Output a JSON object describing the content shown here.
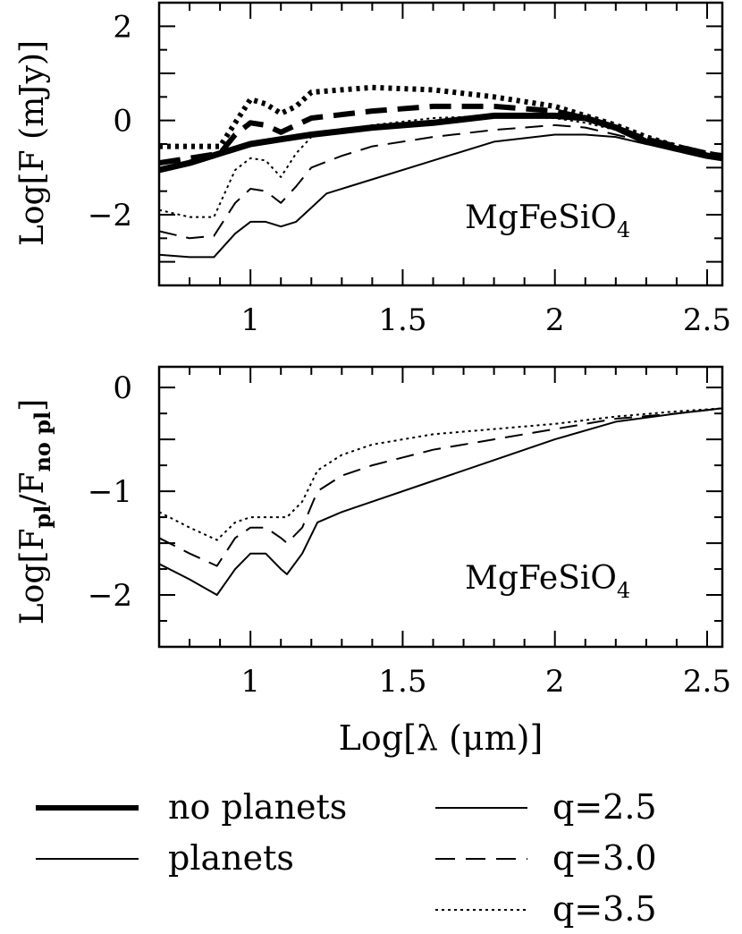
{
  "chart_data": [
    {
      "type": "line",
      "panel": "top",
      "xlabel": "",
      "ylabel": "Log[F (mJy)]",
      "xlim": [
        0.7,
        2.55
      ],
      "ylim": [
        -3.5,
        2.5
      ],
      "xticks": [
        1,
        1.5,
        2,
        2.5
      ],
      "xtick_labels": [
        "1",
        "1.5",
        "2",
        "2.5"
      ],
      "yticks": [
        2,
        0,
        -2
      ],
      "ytick_labels": [
        "2",
        "0",
        "−2"
      ],
      "annotation": {
        "text": "MgFeSiO",
        "subscript": "4"
      },
      "series": [
        {
          "name": "no planets, q=2.5",
          "style": "thick-solid",
          "x": [
            0.7,
            0.8,
            0.9,
            1.0,
            1.1,
            1.2,
            1.4,
            1.6,
            1.8,
            2.0,
            2.1,
            2.2,
            2.3,
            2.4,
            2.5,
            2.55
          ],
          "y": [
            -1.05,
            -0.9,
            -0.7,
            -0.5,
            -0.4,
            -0.3,
            -0.15,
            -0.05,
            0.1,
            0.1,
            0.05,
            -0.15,
            -0.45,
            -0.6,
            -0.75,
            -0.8
          ]
        },
        {
          "name": "no planets, q=3.0",
          "style": "thick-dashed",
          "x": [
            0.7,
            0.8,
            0.9,
            0.95,
            1.0,
            1.05,
            1.1,
            1.15,
            1.2,
            1.4,
            1.6,
            1.8,
            2.0,
            2.1,
            2.2,
            2.3,
            2.4,
            2.5,
            2.55
          ],
          "y": [
            -0.9,
            -0.8,
            -0.7,
            -0.3,
            -0.05,
            -0.1,
            -0.25,
            -0.1,
            0.05,
            0.2,
            0.3,
            0.3,
            0.2,
            0.05,
            -0.15,
            -0.4,
            -0.55,
            -0.7,
            -0.75
          ]
        },
        {
          "name": "no planets, q=3.5",
          "style": "thick-dotted",
          "x": [
            0.7,
            0.8,
            0.9,
            0.95,
            1.0,
            1.05,
            1.1,
            1.15,
            1.2,
            1.3,
            1.4,
            1.6,
            1.8,
            2.0,
            2.1,
            2.2,
            2.3,
            2.4,
            2.5,
            2.55
          ],
          "y": [
            -0.55,
            -0.55,
            -0.55,
            -0.05,
            0.45,
            0.35,
            0.15,
            0.3,
            0.6,
            0.65,
            0.7,
            0.65,
            0.5,
            0.3,
            0.1,
            -0.1,
            -0.35,
            -0.55,
            -0.7,
            -0.75
          ]
        },
        {
          "name": "planets, q=2.5",
          "style": "thin-solid",
          "x": [
            0.7,
            0.8,
            0.88,
            0.95,
            1.0,
            1.05,
            1.1,
            1.15,
            1.2,
            1.25,
            1.4,
            1.6,
            1.8,
            2.0,
            2.1,
            2.2,
            2.3,
            2.4,
            2.5,
            2.55
          ],
          "y": [
            -2.85,
            -2.9,
            -2.9,
            -2.4,
            -2.15,
            -2.15,
            -2.25,
            -2.15,
            -1.85,
            -1.55,
            -1.25,
            -0.85,
            -0.45,
            -0.3,
            -0.3,
            -0.35,
            -0.5,
            -0.6,
            -0.7,
            -0.75
          ]
        },
        {
          "name": "planets, q=3.0",
          "style": "thin-dashed",
          "x": [
            0.7,
            0.8,
            0.88,
            0.95,
            1.0,
            1.05,
            1.1,
            1.15,
            1.2,
            1.3,
            1.4,
            1.6,
            1.8,
            2.0,
            2.1,
            2.2,
            2.3,
            2.4,
            2.5,
            2.55
          ],
          "y": [
            -2.35,
            -2.5,
            -2.45,
            -1.75,
            -1.45,
            -1.5,
            -1.75,
            -1.4,
            -1.0,
            -0.75,
            -0.55,
            -0.35,
            -0.2,
            -0.1,
            -0.15,
            -0.3,
            -0.45,
            -0.6,
            -0.7,
            -0.75
          ]
        },
        {
          "name": "planets, q=3.5",
          "style": "thin-dotted",
          "x": [
            0.7,
            0.8,
            0.88,
            0.95,
            1.0,
            1.05,
            1.1,
            1.15,
            1.2,
            1.3,
            1.4,
            1.6,
            1.8,
            2.0,
            2.1,
            2.2,
            2.3,
            2.4,
            2.5,
            2.55
          ],
          "y": [
            -1.9,
            -2.05,
            -2.05,
            -1.05,
            -0.8,
            -0.85,
            -1.2,
            -0.7,
            -0.35,
            -0.2,
            -0.1,
            0.05,
            0.1,
            0.05,
            -0.05,
            -0.2,
            -0.4,
            -0.55,
            -0.7,
            -0.75
          ]
        }
      ]
    },
    {
      "type": "line",
      "panel": "bottom",
      "xlabel": "Log[λ (μm)]",
      "ylabel": "Log[F_pl/F_no pl]",
      "ylabel_parts": {
        "prefix": "Log[F",
        "sub1": "pl",
        "mid": "/F",
        "sub2": "no pl",
        "suffix": "]"
      },
      "xlim": [
        0.7,
        2.55
      ],
      "ylim": [
        -2.5,
        0.2
      ],
      "xticks": [
        1,
        1.5,
        2,
        2.5
      ],
      "xtick_labels": [
        "1",
        "1.5",
        "2",
        "2.5"
      ],
      "yticks": [
        0,
        -1,
        -2
      ],
      "ytick_labels": [
        "0",
        "−1",
        "−2"
      ],
      "annotation": {
        "text": "MgFeSiO",
        "subscript": "4"
      },
      "series": [
        {
          "name": "q=2.5",
          "style": "thin-solid",
          "x": [
            0.7,
            0.8,
            0.89,
            0.95,
            1.0,
            1.05,
            1.1,
            1.12,
            1.17,
            1.22,
            1.3,
            1.4,
            1.6,
            1.8,
            2.0,
            2.2,
            2.4,
            2.55
          ],
          "y": [
            -1.7,
            -1.85,
            -2.0,
            -1.75,
            -1.6,
            -1.6,
            -1.75,
            -1.8,
            -1.6,
            -1.3,
            -1.2,
            -1.1,
            -0.9,
            -0.7,
            -0.5,
            -0.33,
            -0.25,
            -0.2
          ]
        },
        {
          "name": "q=3.0",
          "style": "thin-dashed",
          "x": [
            0.7,
            0.8,
            0.89,
            0.95,
            1.0,
            1.05,
            1.1,
            1.12,
            1.17,
            1.22,
            1.3,
            1.4,
            1.6,
            1.8,
            2.0,
            2.2,
            2.4,
            2.55
          ],
          "y": [
            -1.45,
            -1.6,
            -1.72,
            -1.45,
            -1.35,
            -1.35,
            -1.45,
            -1.5,
            -1.35,
            -1.0,
            -0.85,
            -0.75,
            -0.6,
            -0.5,
            -0.4,
            -0.3,
            -0.25,
            -0.2
          ]
        },
        {
          "name": "q=3.5",
          "style": "thin-dotted",
          "x": [
            0.7,
            0.8,
            0.89,
            0.95,
            1.0,
            1.05,
            1.1,
            1.12,
            1.17,
            1.22,
            1.3,
            1.4,
            1.6,
            1.8,
            2.0,
            2.2,
            2.4,
            2.55
          ],
          "y": [
            -1.2,
            -1.35,
            -1.47,
            -1.3,
            -1.25,
            -1.25,
            -1.25,
            -1.25,
            -1.1,
            -0.8,
            -0.65,
            -0.55,
            -0.45,
            -0.4,
            -0.35,
            -0.28,
            -0.23,
            -0.2
          ]
        }
      ]
    }
  ],
  "legend": {
    "linewidth_entries": [
      {
        "label": "no planets",
        "style": "thick-solid"
      },
      {
        "label": "planets",
        "style": "thin-solid"
      }
    ],
    "q_entries": [
      {
        "label": "q=2.5",
        "style": "thin-solid"
      },
      {
        "label": "q=3.0",
        "style": "thin-dashed"
      },
      {
        "label": "q=3.5",
        "style": "thin-dotted"
      }
    ]
  }
}
